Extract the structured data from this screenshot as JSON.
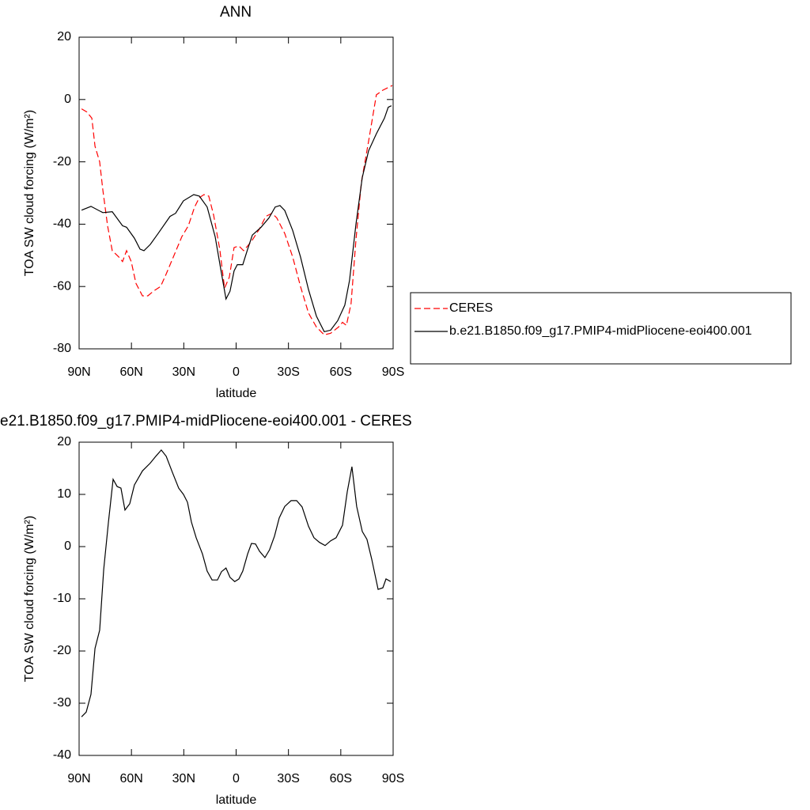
{
  "chart_data": [
    {
      "type": "line",
      "title": "ANN",
      "xlabel": "latitude",
      "ylabel": "TOA SW cloud forcing (W/m²)",
      "xlim": [
        90,
        -90
      ],
      "ylim": [
        -80,
        20
      ],
      "xticks": [
        {
          "value": 90,
          "label": "90N"
        },
        {
          "value": 60,
          "label": "60N"
        },
        {
          "value": 30,
          "label": "30N"
        },
        0,
        {
          "value": -30,
          "label": "30S"
        },
        {
          "value": -60,
          "label": "60S"
        },
        {
          "value": -90,
          "label": "90S"
        }
      ],
      "yticks": [
        -80,
        -60,
        -40,
        -20,
        0,
        20
      ],
      "legend": "right",
      "series": [
        {
          "name": "CERES",
          "color": "#ff0000",
          "dash": true,
          "x": [
            88.6,
            85.5,
            82.7,
            80.9,
            78.2,
            76.4,
            73.7,
            71.0,
            67.3,
            65.1,
            62.8,
            60.1,
            57.4,
            53.7,
            50.6,
            47.4,
            43.3,
            40.1,
            35.6,
            31.1,
            27.4,
            23.8,
            21.1,
            18.4,
            15.7,
            12.9,
            9.4,
            6.6,
            3.9,
            1.2,
            -1.6,
            -4.3,
            -8.8,
            -13.4,
            -17.0,
            -20.6,
            -23.3,
            -27.9,
            -32.4,
            -36.9,
            -41.5,
            -46.0,
            -50.5,
            -54.2,
            -58.7,
            -61.0,
            -63.2,
            -65.9,
            -68.7,
            -71.8,
            -75.9,
            -80.4,
            -84.1,
            -89.5
          ],
          "values": [
            -3,
            -4,
            -6,
            -15,
            -20,
            -29,
            -40.5,
            -48.5,
            -50.5,
            -52,
            -48.5,
            -52,
            -59,
            -63,
            -63,
            -61.5,
            -60,
            -56,
            -50,
            -44,
            -40.5,
            -34.5,
            -31.5,
            -30.5,
            -31,
            -37,
            -48,
            -60.5,
            -57,
            -47.5,
            -47,
            -48.5,
            -45.5,
            -41.5,
            -37.5,
            -36.5,
            -38,
            -43,
            -50.5,
            -60,
            -68.5,
            -73,
            -75.5,
            -75,
            -73,
            -71.5,
            -72.5,
            -65.5,
            -45,
            -26.5,
            -13.5,
            1.5,
            3,
            4.5
          ]
        },
        {
          "name": "b.e21.B1850.f09_g17.PMIP4-midPliocene-eoi400.001",
          "color": "#000000",
          "dash": false,
          "x": [
            88.6,
            83.2,
            76.4,
            71.0,
            65.1,
            62.8,
            58.3,
            55.1,
            52.8,
            49.2,
            44.7,
            37.9,
            34.7,
            30.2,
            24.3,
            21.1,
            16.6,
            12.0,
            8.5,
            5.8,
            3.5,
            1.2,
            -0.7,
            -3.8,
            -6.6,
            -9.3,
            -14.3,
            -18.8,
            -22.4,
            -25.1,
            -27.9,
            -32.4,
            -36.9,
            -41.5,
            -46.0,
            -50.5,
            -54.2,
            -58.2,
            -62.3,
            -65.0,
            -68.7,
            -72.3,
            -75.9,
            -80.4,
            -85.0,
            -87.2,
            -89.0
          ],
          "values": [
            -35.5,
            -34.3,
            -36.3,
            -36,
            -40.5,
            -41,
            -44.5,
            -48,
            -48.5,
            -46.5,
            -43,
            -37.5,
            -36.5,
            -32.5,
            -30.5,
            -31,
            -34.5,
            -44,
            -55.5,
            -64,
            -61.5,
            -55,
            -53,
            -53,
            -48,
            -43.5,
            -41,
            -38,
            -34.5,
            -34,
            -35.6,
            -42,
            -50.5,
            -61,
            -69.5,
            -74.5,
            -74,
            -71,
            -66,
            -58,
            -40,
            -25,
            -16.5,
            -11,
            -6,
            -2.5,
            -2
          ]
        }
      ]
    },
    {
      "type": "line",
      "title": "e21.B1850.f09_g17.PMIP4-midPliocene-eoi400.001 - CERES",
      "xlabel": "latitude",
      "ylabel": "TOA SW cloud forcing (W/m²)",
      "xlim": [
        90,
        -90
      ],
      "ylim": [
        -40,
        20
      ],
      "xticks": [
        {
          "value": 90,
          "label": "90N"
        },
        {
          "value": 60,
          "label": "60N"
        },
        {
          "value": 30,
          "label": "30N"
        },
        0,
        {
          "value": -30,
          "label": "30S"
        },
        {
          "value": -60,
          "label": "60S"
        },
        {
          "value": -90,
          "label": "90S"
        }
      ],
      "yticks": [
        -40,
        -30,
        -20,
        -10,
        0,
        10,
        20
      ],
      "series": [
        {
          "color": "#000000",
          "dash": false,
          "x": [
            88.6,
            85.9,
            83.2,
            80.9,
            78.2,
            75.9,
            73.2,
            70.5,
            68.2,
            66.0,
            63.7,
            61.0,
            58.3,
            53.7,
            49.2,
            46.0,
            42.9,
            40.1,
            36.5,
            32.9,
            30.2,
            27.9,
            25.6,
            22.9,
            19.3,
            16.6,
            13.8,
            10.7,
            8.4,
            5.8,
            3.5,
            0.8,
            -1.6,
            -3.8,
            -6.6,
            -8.8,
            -11.1,
            -13.4,
            -16.5,
            -19.2,
            -22.0,
            -24.7,
            -27.9,
            -31.5,
            -34.7,
            -37.8,
            -41.5,
            -44.6,
            -47.8,
            -51.0,
            -54.2,
            -57.3,
            -61.0,
            -63.7,
            -66.4,
            -69.1,
            -72.3,
            -75.0,
            -77.7,
            -81.4,
            -84.1,
            -85.9,
            -88.6
          ],
          "values": [
            -32.6,
            -31.7,
            -28.3,
            -19.5,
            -16,
            -4.4,
            4.7,
            12.9,
            11.5,
            11.2,
            7,
            8.2,
            11.8,
            14.5,
            16,
            17.3,
            18.5,
            17.3,
            14.2,
            11.2,
            10,
            8.5,
            4.7,
            1.7,
            -1.4,
            -4.7,
            -6.4,
            -6.4,
            -4.8,
            -4.1,
            -5.9,
            -6.7,
            -6.2,
            -4.7,
            -1.4,
            0.6,
            0.5,
            -0.9,
            -2.1,
            -0.6,
            2,
            5.5,
            7.7,
            8.8,
            8.8,
            7.6,
            3.9,
            1.7,
            0.8,
            0.2,
            1.1,
            1.7,
            4.1,
            10.5,
            15.3,
            7.7,
            2.9,
            1.4,
            -2.4,
            -8.2,
            -7.9,
            -6.2,
            -6.7
          ]
        }
      ]
    }
  ]
}
